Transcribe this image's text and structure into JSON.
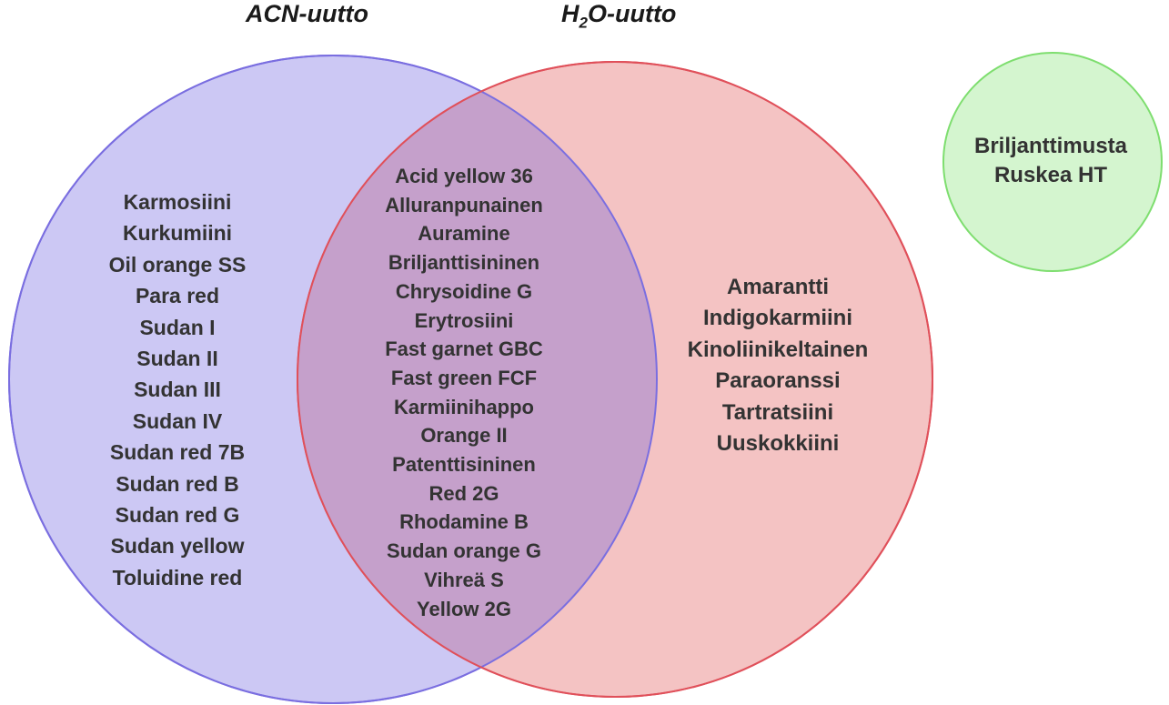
{
  "titles": {
    "acn": "ACN-uutto",
    "h2o_prefix": "H",
    "h2o_sub": "2",
    "h2o_suffix": "O-uutto"
  },
  "colors": {
    "acn_fill": "#ccc8f4",
    "acn_stroke": "#7a6ee0",
    "h2o_fill": "#f4c3c3",
    "h2o_stroke": "#e0505a",
    "overlap_fill": "#c5a0cb",
    "green_fill": "#d4f5cf",
    "green_stroke": "#7ede6f"
  },
  "acn_only": [
    "Karmosiini",
    "Kurkumiini",
    "Oil orange SS",
    "Para red",
    "Sudan I",
    "Sudan II",
    "Sudan III",
    "Sudan IV",
    "Sudan red 7B",
    "Sudan red B",
    "Sudan red G",
    "Sudan yellow",
    "Toluidine red"
  ],
  "both": [
    "Acid yellow 36",
    "Alluranpunainen",
    "Auramine",
    "Briljanttisininen",
    "Chrysoidine G",
    "Erytrosiini",
    "Fast garnet GBC",
    "Fast green FCF",
    "Karmiinihappo",
    "Orange II",
    "Patenttisininen",
    "Red 2G",
    "Rhodamine B",
    "Sudan orange G",
    "Vihreä S",
    "Yellow 2G"
  ],
  "h2o_only": [
    "Amarantti",
    "Indigokarmiini",
    "Kinoliinikeltainen",
    "Paraoranssi",
    "Tartratsiini",
    "Uuskokkiini"
  ],
  "neither": [
    "Briljanttimusta",
    "Ruskea HT"
  ]
}
